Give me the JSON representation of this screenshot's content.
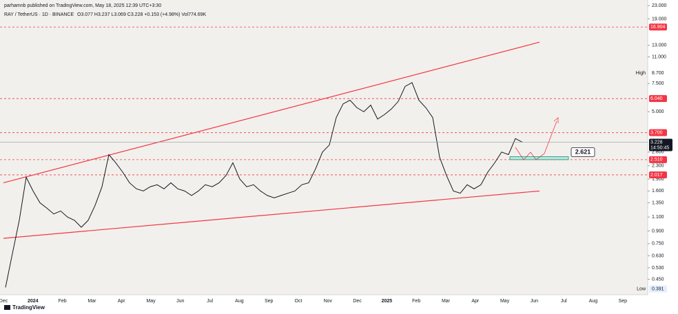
{
  "chart_data": {
    "type": "line",
    "publisher": "parhamnb published on TradingView.com, May 18, 2025 12:39 UTC+3:30",
    "symbol": "RAY / TetherUS · 1D · BINANCE",
    "ohlc": "O3.077 H3.237 L3.069 C3.228 +0.153 (+4.98%) Vol774.69K",
    "logo": "TradingView",
    "log_scale": true,
    "ylim": [
      0.36,
      24.2
    ],
    "yticks": [
      {
        "value": 23,
        "label": "23.000"
      },
      {
        "value": 19,
        "label": "19.000"
      },
      {
        "value": 13,
        "label": "13.000"
      },
      {
        "value": 11,
        "label": "11.000"
      },
      {
        "value": 7.5,
        "label": "7.500"
      },
      {
        "value": 5,
        "label": "5.000"
      },
      {
        "value": 2.8,
        "label": "2.800"
      },
      {
        "value": 2.3,
        "label": "2.300"
      },
      {
        "value": 1.9,
        "label": "1.900"
      },
      {
        "value": 1.6,
        "label": "1.600"
      },
      {
        "value": 1.35,
        "label": "1.350"
      },
      {
        "value": 1.1,
        "label": "1.100"
      },
      {
        "value": 0.9,
        "label": "0.900"
      },
      {
        "value": 0.75,
        "label": "0.750"
      },
      {
        "value": 0.63,
        "label": "0.630"
      },
      {
        "value": 0.53,
        "label": "0.530"
      },
      {
        "value": 0.45,
        "label": "0.450"
      }
    ],
    "xticks": [
      "Dec",
      "2024",
      "Feb",
      "Mar",
      "Apr",
      "May",
      "Jun",
      "Jul",
      "Aug",
      "Sep",
      "Oct",
      "Nov",
      "Dec",
      "2025",
      "Feb",
      "Mar",
      "Apr",
      "May",
      "Jun",
      "Jul",
      "Aug",
      "Sep"
    ],
    "series": [
      {
        "name": "RAY / TetherUS",
        "color": "#131722",
        "values": [
          0.4,
          0.65,
          1.05,
          1.95,
          1.6,
          1.35,
          1.25,
          1.15,
          1.2,
          1.1,
          1.05,
          0.95,
          1.05,
          1.3,
          1.7,
          2.7,
          2.4,
          2.1,
          1.8,
          1.65,
          1.6,
          1.7,
          1.75,
          1.65,
          1.8,
          1.65,
          1.6,
          1.5,
          1.6,
          1.75,
          1.7,
          1.8,
          2.0,
          2.4,
          1.9,
          1.7,
          1.75,
          1.6,
          1.5,
          1.45,
          1.5,
          1.55,
          1.6,
          1.75,
          1.8,
          2.2,
          2.8,
          3.1,
          4.6,
          5.6,
          5.9,
          5.3,
          5.0,
          5.5,
          4.5,
          4.8,
          5.2,
          5.8,
          7.2,
          7.6,
          5.9,
          5.3,
          4.6,
          2.6,
          2.0,
          1.6,
          1.55,
          1.75,
          1.65,
          1.75,
          2.1,
          2.4,
          2.8,
          2.7,
          3.4,
          3.228
        ]
      }
    ],
    "levels": [
      {
        "value": 16.904,
        "label": "16.904",
        "color": "#f23645"
      },
      {
        "value": 6.04,
        "label": "6.040",
        "color": "#f23645"
      },
      {
        "value": 3.7,
        "label": "3.700",
        "color": "#f23645"
      },
      {
        "value": 2.51,
        "label": "2.510",
        "color": "#f23645"
      },
      {
        "value": 2.017,
        "label": "2.017",
        "color": "#f23645"
      }
    ],
    "last_price": {
      "value": 3.228,
      "label": "3.228",
      "countdown": "14:50:45"
    },
    "high": {
      "text": "High",
      "value": 8.7,
      "label": "8.700"
    },
    "low": {
      "text": "Low",
      "value": 0.391,
      "label": "0.391"
    },
    "zone": {
      "top": 2.621,
      "bottom": 2.51,
      "label": "2.621"
    },
    "trendlines": [
      {
        "start": 1.8,
        "end": 13.6
      },
      {
        "start": 0.81,
        "end": 1.6
      }
    ]
  }
}
